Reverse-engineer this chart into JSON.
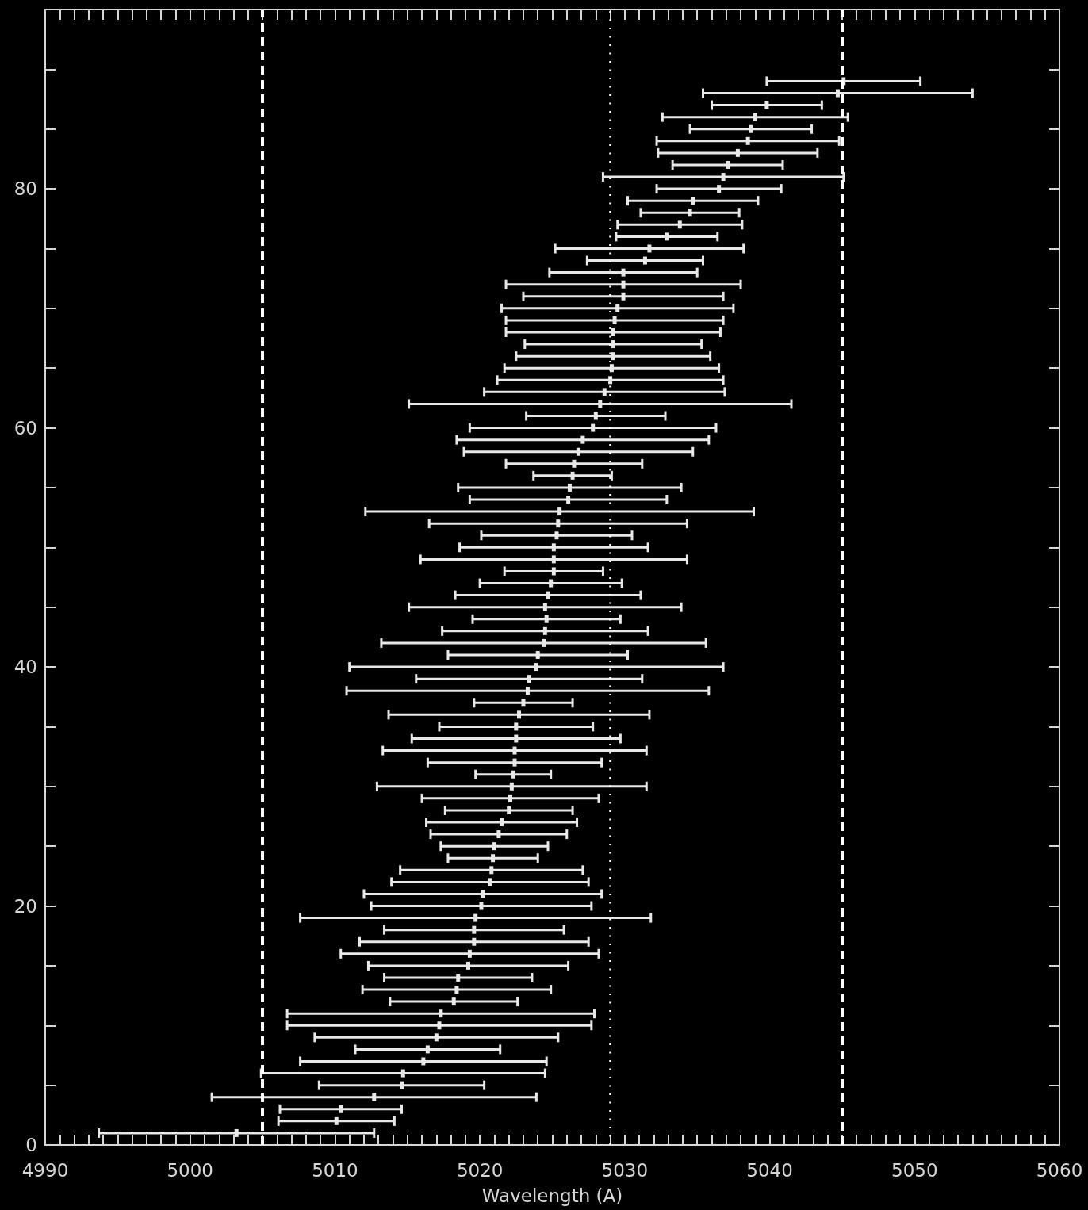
{
  "chart_data": {
    "type": "scatter",
    "xlabel": "Wavelength (A)",
    "color": "#e8e8e8",
    "x": [
      5003.2,
      5010.1,
      5010.4,
      5012.7,
      5014.6,
      5014.7,
      5016.1,
      5016.4,
      5017.0,
      5017.2,
      5017.3,
      5018.2,
      5018.4,
      5018.5,
      5019.2,
      5019.3,
      5019.6,
      5019.6,
      5019.7,
      5020.1,
      5020.2,
      5020.7,
      5020.8,
      5020.9,
      5021.0,
      5021.3,
      5021.5,
      5022.0,
      5022.1,
      5022.2,
      5022.3,
      5022.4,
      5022.4,
      5022.5,
      5022.5,
      5022.7,
      5023.0,
      5023.3,
      5023.4,
      5023.9,
      5024.0,
      5024.4,
      5024.5,
      5024.6,
      5024.5,
      5024.7,
      5024.9,
      5025.1,
      5025.1,
      5025.1,
      5025.3,
      5025.4,
      5025.5,
      5026.1,
      5026.2,
      5026.4,
      5026.5,
      5026.8,
      5027.1,
      5027.8,
      5028.0,
      5028.3,
      5028.6,
      5029.0,
      5029.1,
      5029.2,
      5029.2,
      5029.2,
      5029.3,
      5029.5,
      5029.9,
      5029.9,
      5029.9,
      5031.4,
      5031.7,
      5032.9,
      5033.8,
      5034.5,
      5034.7,
      5036.5,
      5036.8,
      5037.1,
      5037.8,
      5038.5,
      5038.7,
      5039.0,
      5039.8,
      5044.7,
      5045.1
    ],
    "values": [
      1,
      2,
      3,
      4,
      5,
      6,
      7,
      8,
      9,
      10,
      11,
      12,
      13,
      14,
      15,
      16,
      17,
      18,
      19,
      20,
      21,
      22,
      23,
      24,
      25,
      26,
      27,
      28,
      29,
      30,
      31,
      32,
      33,
      34,
      35,
      36,
      37,
      38,
      39,
      40,
      41,
      42,
      43,
      44,
      45,
      46,
      47,
      48,
      49,
      50,
      51,
      52,
      53,
      54,
      55,
      56,
      57,
      58,
      59,
      60,
      61,
      62,
      63,
      64,
      65,
      66,
      67,
      68,
      69,
      70,
      71,
      72,
      73,
      74,
      75,
      76,
      77,
      78,
      79,
      80,
      81,
      82,
      83,
      84,
      85,
      86,
      87,
      88,
      89
    ],
    "xerrors": [
      9.5,
      4.0,
      4.2,
      11.2,
      5.7,
      9.8,
      8.5,
      5.0,
      8.4,
      10.5,
      10.6,
      4.4,
      6.5,
      5.1,
      6.9,
      8.9,
      7.9,
      6.2,
      12.1,
      7.6,
      8.2,
      6.8,
      6.3,
      3.1,
      3.7,
      4.7,
      5.2,
      4.4,
      6.1,
      9.3,
      2.6,
      6.0,
      9.1,
      7.2,
      5.3,
      9.0,
      3.4,
      12.5,
      7.8,
      12.9,
      6.2,
      11.2,
      7.1,
      5.1,
      9.4,
      6.4,
      4.9,
      3.4,
      9.2,
      6.5,
      5.2,
      8.9,
      13.4,
      6.8,
      7.7,
      2.7,
      4.7,
      7.9,
      8.7,
      8.5,
      4.8,
      13.2,
      8.3,
      7.8,
      7.4,
      6.7,
      6.1,
      7.4,
      7.5,
      8.0,
      6.9,
      8.1,
      5.1,
      4.0,
      6.5,
      3.5,
      4.3,
      3.4,
      4.5,
      4.3,
      8.3,
      3.8,
      5.5,
      6.3,
      4.2,
      6.4,
      3.8,
      9.3,
      5.3
    ],
    "xlim": [
      4990,
      5060
    ],
    "xticks": [
      4990,
      {
        "value": 4991,
        "label": null
      },
      {
        "value": 4992,
        "label": null
      },
      {
        "value": 4993,
        "label": null
      },
      {
        "value": 4994,
        "label": null
      },
      {
        "value": 4995,
        "label": null
      },
      {
        "value": 4996,
        "label": null
      },
      {
        "value": 4997,
        "label": null
      },
      {
        "value": 4998,
        "label": null
      },
      {
        "value": 4999,
        "label": null
      },
      5000,
      {
        "value": 5001,
        "label": null
      },
      {
        "value": 5002,
        "label": null
      },
      {
        "value": 5003,
        "label": null
      },
      {
        "value": 5004,
        "label": null
      },
      {
        "value": 5005,
        "label": null
      },
      {
        "value": 5006,
        "label": null
      },
      {
        "value": 5007,
        "label": null
      },
      {
        "value": 5008,
        "label": null
      },
      {
        "value": 5009,
        "label": null
      },
      5010,
      {
        "value": 5011,
        "label": null
      },
      {
        "value": 5012,
        "label": null
      },
      {
        "value": 5013,
        "label": null
      },
      {
        "value": 5014,
        "label": null
      },
      {
        "value": 5015,
        "label": null
      },
      {
        "value": 5016,
        "label": null
      },
      {
        "value": 5017,
        "label": null
      },
      {
        "value": 5018,
        "label": null
      },
      {
        "value": 5019,
        "label": null
      },
      5020,
      {
        "value": 5021,
        "label": null
      },
      {
        "value": 5022,
        "label": null
      },
      {
        "value": 5023,
        "label": null
      },
      {
        "value": 5024,
        "label": null
      },
      {
        "value": 5025,
        "label": null
      },
      {
        "value": 5026,
        "label": null
      },
      {
        "value": 5027,
        "label": null
      },
      {
        "value": 5028,
        "label": null
      },
      {
        "value": 5029,
        "label": null
      },
      5030,
      {
        "value": 5031,
        "label": null
      },
      {
        "value": 5032,
        "label": null
      },
      {
        "value": 5033,
        "label": null
      },
      {
        "value": 5034,
        "label": null
      },
      {
        "value": 5035,
        "label": null
      },
      {
        "value": 5036,
        "label": null
      },
      {
        "value": 5037,
        "label": null
      },
      {
        "value": 5038,
        "label": null
      },
      {
        "value": 5039,
        "label": null
      },
      5040,
      {
        "value": 5041,
        "label": null
      },
      {
        "value": 5042,
        "label": null
      },
      {
        "value": 5043,
        "label": null
      },
      {
        "value": 5044,
        "label": null
      },
      {
        "value": 5045,
        "label": null
      },
      {
        "value": 5046,
        "label": null
      },
      {
        "value": 5047,
        "label": null
      },
      {
        "value": 5048,
        "label": null
      },
      {
        "value": 5049,
        "label": null
      },
      5050,
      {
        "value": 5051,
        "label": null
      },
      {
        "value": 5052,
        "label": null
      },
      {
        "value": 5053,
        "label": null
      },
      {
        "value": 5054,
        "label": null
      },
      {
        "value": 5055,
        "label": null
      },
      {
        "value": 5056,
        "label": null
      },
      {
        "value": 5057,
        "label": null
      },
      {
        "value": 5058,
        "label": null
      },
      {
        "value": 5059,
        "label": null
      },
      5060
    ],
    "ylim": [
      0,
      95
    ],
    "yticks": [
      0,
      {
        "value": 5,
        "label": null
      },
      {
        "value": 10,
        "label": null
      },
      {
        "value": 15,
        "label": null
      },
      20,
      {
        "value": 25,
        "label": null
      },
      {
        "value": 30,
        "label": null
      },
      {
        "value": 35,
        "label": null
      },
      40,
      {
        "value": 45,
        "label": null
      },
      {
        "value": 50,
        "label": null
      },
      {
        "value": 55,
        "label": null
      },
      60,
      {
        "value": 65,
        "label": null
      },
      {
        "value": 70,
        "label": null
      },
      {
        "value": 75,
        "label": null
      },
      80,
      {
        "value": 85,
        "label": null
      },
      {
        "value": 90,
        "label": null
      }
    ],
    "ref_lines": [
      {
        "axis": "x",
        "value": 5005,
        "line_style": "dashed",
        "color": "#ffffff"
      },
      {
        "axis": "x",
        "value": 5029,
        "line_style": "dotted",
        "color": "#ffffff"
      },
      {
        "axis": "x",
        "value": 5045,
        "line_style": "dashed",
        "color": "#ffffff"
      }
    ]
  }
}
